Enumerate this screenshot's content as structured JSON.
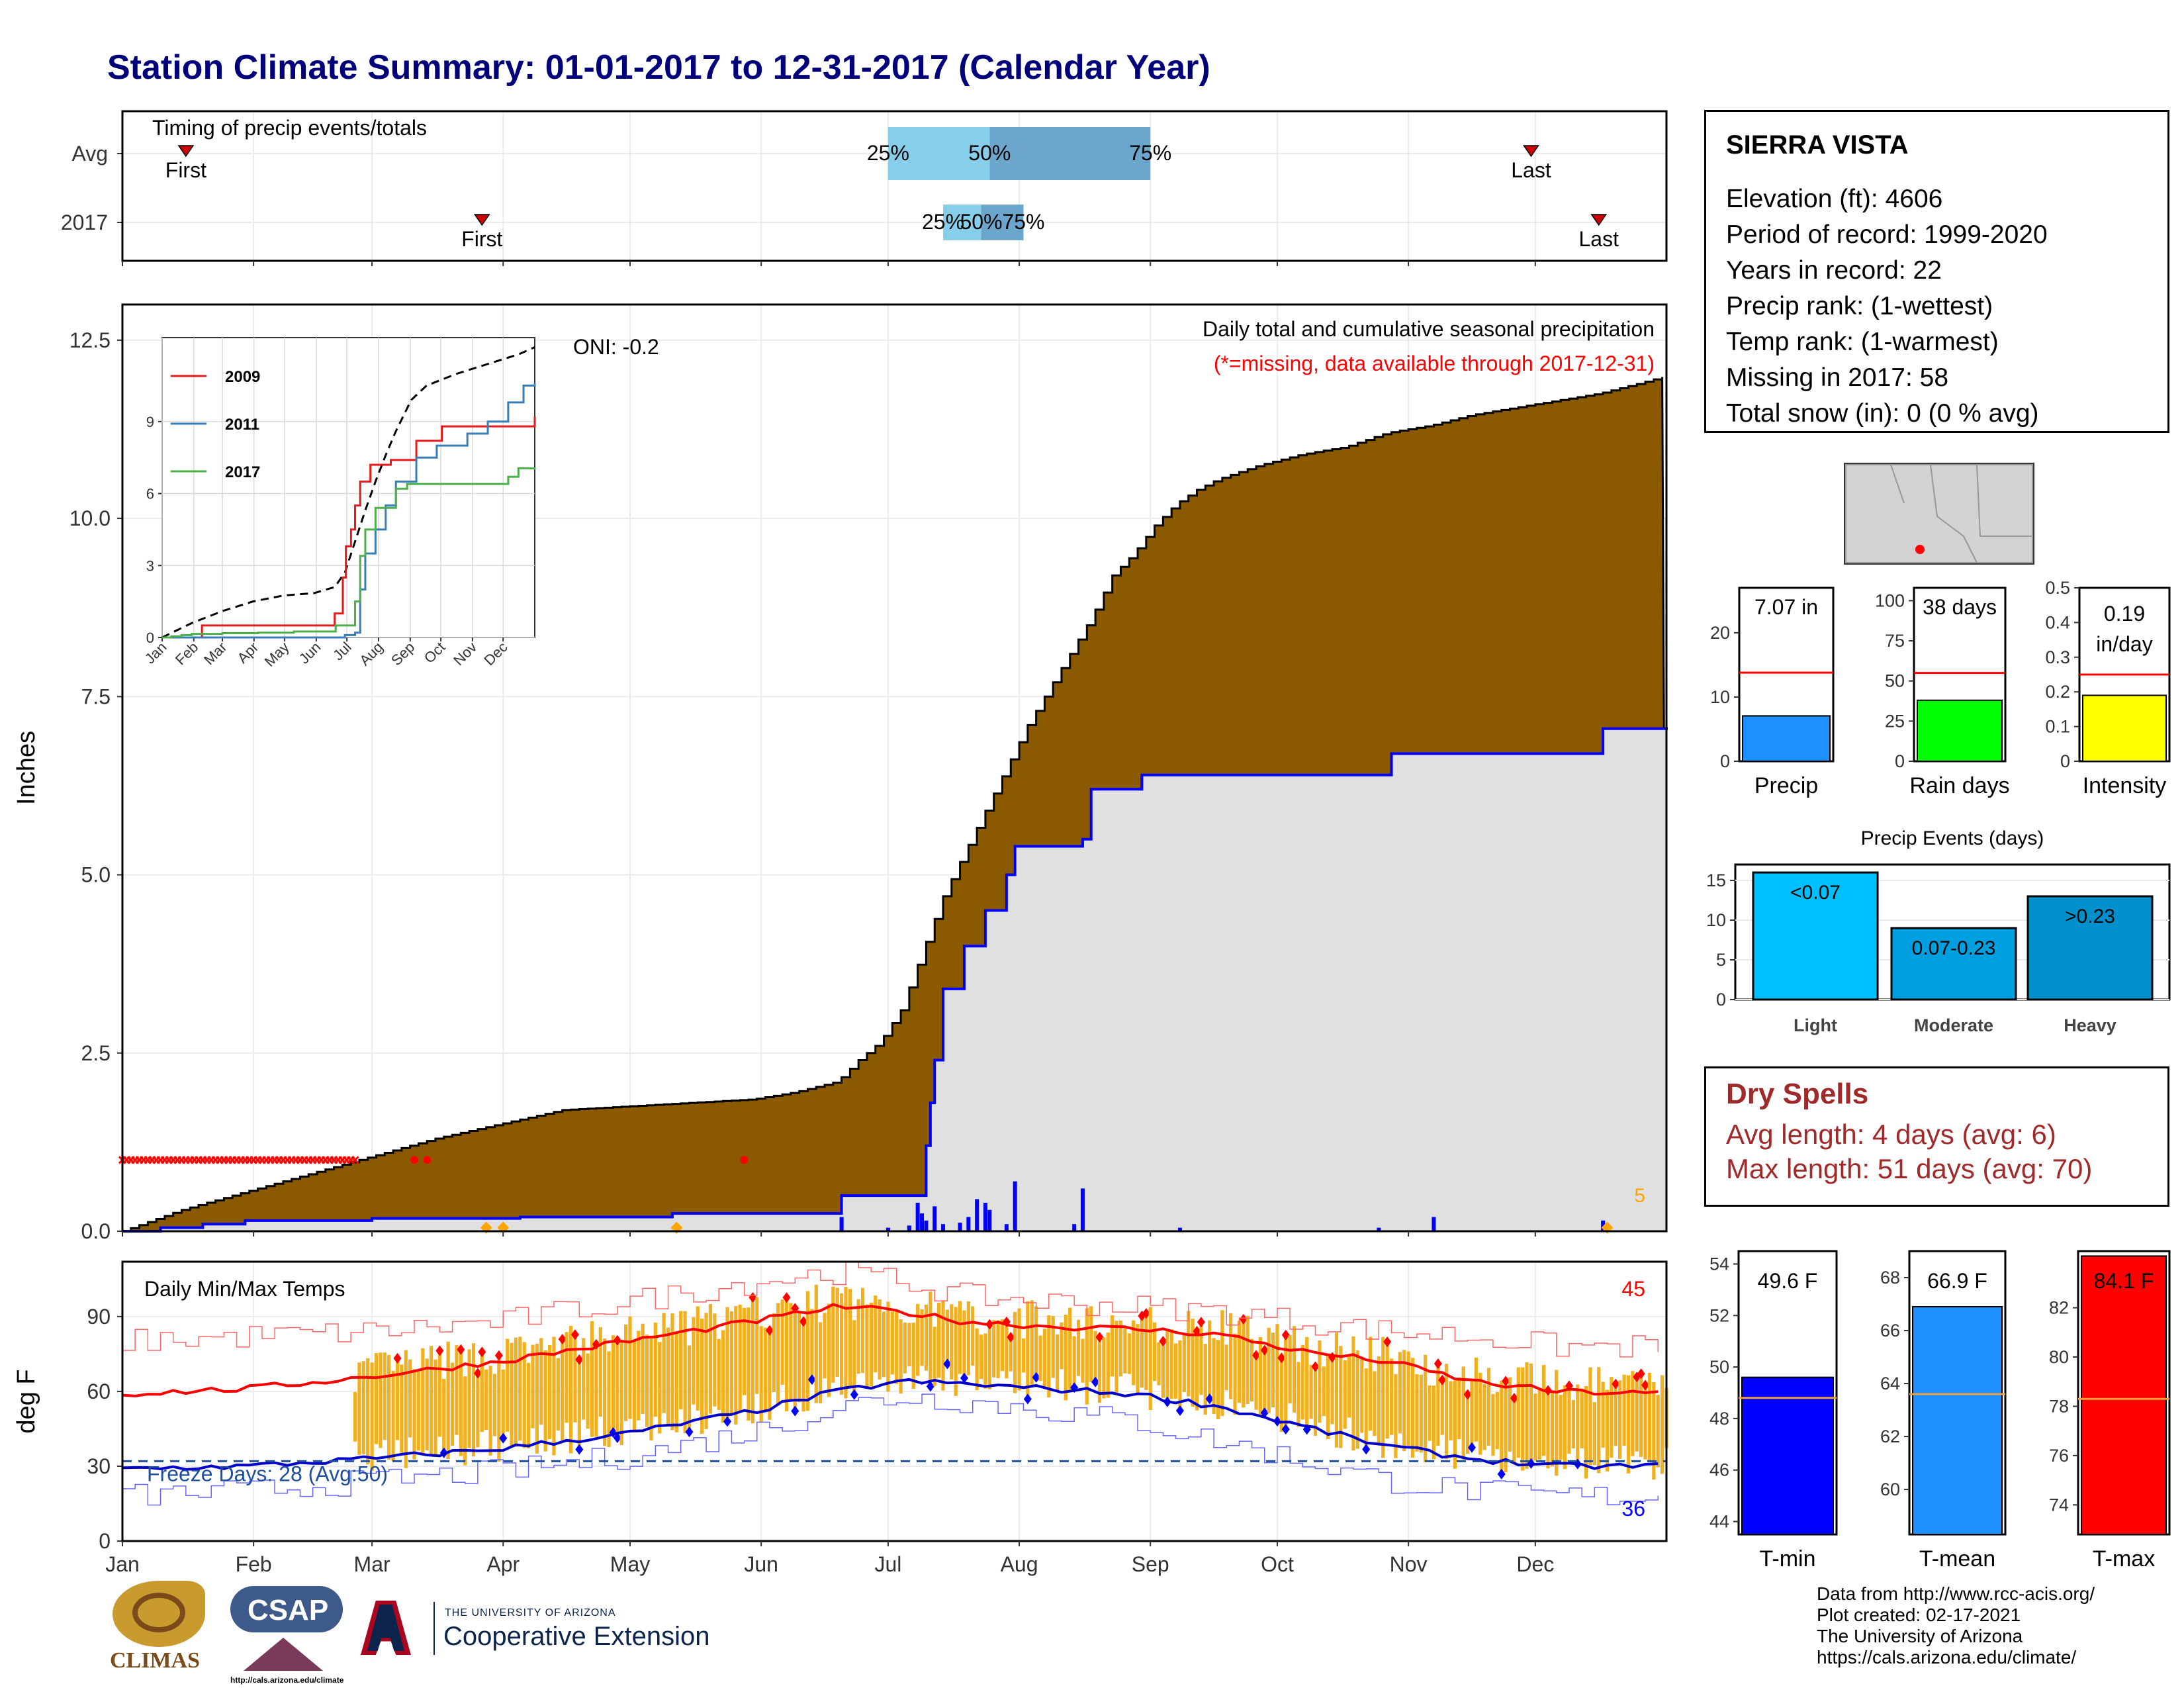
{
  "title": "Station Climate Summary: 01-01-2017 to 12-31-2017 (Calendar Year)",
  "station": {
    "name": "SIERRA VISTA",
    "lines": [
      "Elevation (ft): 4606",
      "Period of record: 1999-2020",
      "Years in record: 22",
      "Precip rank:  (1-wettest)",
      "Temp rank:  (1-warmest)",
      "Missing in 2017: 58",
      "Total snow (in): 0 (0 % avg)"
    ]
  },
  "dry_spells": {
    "title": "Dry Spells",
    "avg_length": "Avg length: 4 days (avg: 6)",
    "max_length": "Max length: 51 days (avg: 70)"
  },
  "credits": [
    "Data from http://www.rcc-acis.org/",
    "Plot created: 02-17-2021",
    "The University of Arizona",
    "https://cals.arizona.edu/climate/"
  ],
  "logos": {
    "climas": "CLIMAS",
    "csap": "CSAP",
    "csap_url": "http://cals.arizona.edu/climate",
    "ua_small": "THE UNIVERSITY OF ARIZONA",
    "ua_big": "Cooperative Extension"
  },
  "colors": {
    "cumulative_fill": "#8b5a00",
    "avg_fill": "#e0e0e0",
    "year_line": "#0000ff",
    "temp_bar": "#f0b020",
    "tmax_line": "#ff0000",
    "tmin_line": "#0000cc",
    "title": "#00007a",
    "dry_spells": "#a02a2a"
  },
  "chart_data": [
    {
      "id": "timing",
      "type": "bar",
      "title": "Timing of precip events/totals",
      "rows": [
        {
          "label": "Avg",
          "first_day": 16,
          "last_day": 334,
          "p25": 182,
          "p50": 206,
          "p75": 244,
          "first_label": "First",
          "last_label": "Last"
        },
        {
          "label": "2017",
          "first_day": 86,
          "last_day": 350,
          "p25": 195,
          "p50": 204,
          "p75": 214,
          "first_label": "First",
          "last_label": "Last"
        }
      ],
      "percentile_labels": [
        "25%",
        "50%",
        "75%"
      ]
    },
    {
      "id": "precip-main",
      "type": "area",
      "title": "Daily total and cumulative seasonal precipitation",
      "subtitle": "(*=missing, data available through 2017-12-31)",
      "annotation": "ONI: -0.2",
      "ylabel": "Inches",
      "yticks": [
        0.0,
        2.5,
        5.0,
        7.5,
        10.0,
        12.5
      ],
      "ylim": [
        0,
        13
      ],
      "xlim": [
        1,
        366
      ],
      "avg_cumulative": {
        "x": [
          1,
          15,
          30,
          45,
          60,
          75,
          90,
          105,
          120,
          135,
          150,
          160,
          170,
          175,
          180,
          185,
          190,
          195,
          200,
          205,
          210,
          215,
          220,
          225,
          230,
          235,
          240,
          245,
          250,
          255,
          260,
          270,
          280,
          290,
          300,
          310,
          320,
          330,
          340,
          350,
          360,
          366
        ],
        "y": [
          0,
          0.3,
          0.55,
          0.8,
          1.05,
          1.3,
          1.5,
          1.7,
          1.75,
          1.8,
          1.85,
          1.95,
          2.1,
          2.4,
          2.65,
          3.1,
          3.9,
          4.7,
          5.3,
          5.9,
          6.5,
          7.1,
          7.6,
          8.1,
          8.6,
          9.2,
          9.5,
          9.9,
          10.2,
          10.4,
          10.55,
          10.75,
          10.9,
          11.0,
          11.2,
          11.3,
          11.45,
          11.55,
          11.65,
          11.75,
          11.9,
          12.0
        ]
      },
      "year_cumulative": {
        "x": [
          1,
          10,
          20,
          30,
          60,
          90,
          95,
          110,
          129,
          131,
          170,
          171,
          190,
          191,
          192,
          193,
          195,
          200,
          205,
          210,
          212,
          215,
          228,
          230,
          241,
          242,
          300,
          301,
          340,
          350,
          351,
          366
        ],
        "y": [
          0,
          0.05,
          0.1,
          0.15,
          0.18,
          0.18,
          0.2,
          0.2,
          0.2,
          0.25,
          0.25,
          0.5,
          0.5,
          1.2,
          1.8,
          2.4,
          3.4,
          4.0,
          4.5,
          5.0,
          5.4,
          5.4,
          5.5,
          6.2,
          6.2,
          6.4,
          6.4,
          6.7,
          6.7,
          6.7,
          7.05,
          7.07
        ]
      },
      "daily_bars": {
        "x": [
          171,
          182,
          187,
          189,
          190,
          191,
          193,
          195,
          199,
          201,
          203,
          205,
          206,
          210,
          212,
          226,
          228,
          251,
          298,
          311,
          351
        ],
        "y": [
          0.2,
          0.05,
          0.08,
          0.4,
          0.25,
          0.15,
          0.35,
          0.1,
          0.12,
          0.2,
          0.45,
          0.4,
          0.3,
          0.1,
          0.7,
          0.1,
          0.6,
          0.05,
          0.05,
          0.2,
          0.15
        ]
      },
      "missing_days": {
        "x_start": 1,
        "x_end": 56,
        "y": 1.0,
        "extra": [
          70,
          73,
          148
        ]
      },
      "snow_marks": {
        "x": [
          87,
          91,
          132,
          352
        ],
        "label": "5"
      }
    },
    {
      "id": "precip-inset",
      "type": "line",
      "categories": [
        "Jan",
        "Feb",
        "Mar",
        "Apr",
        "May",
        "Jun",
        "Jul",
        "Aug",
        "Sep",
        "Oct",
        "Nov",
        "Dec"
      ],
      "yticks": [
        0,
        3,
        6,
        9
      ],
      "ylim": [
        0,
        12.5
      ],
      "series": [
        {
          "name": "2009",
          "color": "#e41a1c",
          "x": [
            1,
            40,
            90,
            150,
            170,
            178,
            181,
            186,
            190,
            195,
            205,
            225,
            250,
            275,
            300,
            330,
            366
          ],
          "y": [
            0,
            0.5,
            0.5,
            0.5,
            1.0,
            2.5,
            3.8,
            4.5,
            5.5,
            6.5,
            7.2,
            7.4,
            8.2,
            8.8,
            8.8,
            8.8,
            9.2
          ]
        },
        {
          "name": "2011",
          "color": "#377eb8",
          "x": [
            1,
            150,
            180,
            190,
            195,
            200,
            210,
            220,
            230,
            250,
            270,
            300,
            320,
            340,
            355,
            366
          ],
          "y": [
            0,
            0,
            0.1,
            0.2,
            2.0,
            3.5,
            4.5,
            5.5,
            6.5,
            7.5,
            8.0,
            8.5,
            9.0,
            9.8,
            10.5,
            10.6
          ]
        },
        {
          "name": "2017",
          "color": "#4daf4a",
          "x": [
            1,
            10,
            20,
            30,
            60,
            90,
            95,
            130,
            170,
            171,
            190,
            195,
            200,
            210,
            230,
            241,
            300,
            340,
            350,
            366
          ],
          "y": [
            0,
            0.05,
            0.1,
            0.15,
            0.18,
            0.18,
            0.2,
            0.25,
            0.25,
            0.5,
            1.5,
            3.4,
            4.5,
            5.4,
            6.2,
            6.4,
            6.4,
            6.7,
            7.05,
            7.07
          ]
        }
      ],
      "avg_series": {
        "x": [
          1,
          30,
          60,
          90,
          120,
          150,
          170,
          180,
          190,
          200,
          210,
          220,
          230,
          245,
          260,
          290,
          320,
          350,
          366
        ],
        "y": [
          0,
          0.6,
          1.1,
          1.5,
          1.75,
          1.85,
          2.1,
          2.7,
          4.0,
          5.3,
          6.5,
          7.6,
          8.6,
          9.9,
          10.5,
          11.0,
          11.4,
          11.8,
          12.1
        ]
      }
    },
    {
      "id": "temps-main",
      "type": "line",
      "title": "Daily Min/Max Temps",
      "ylabel": "deg F",
      "yticks": [
        0,
        30,
        60,
        90
      ],
      "ylim": [
        0,
        112
      ],
      "x_months": [
        "Jan",
        "Feb",
        "Mar",
        "Apr",
        "May",
        "Jun",
        "Jul",
        "Aug",
        "Sep",
        "Oct",
        "Nov",
        "Dec"
      ],
      "freeze_line": 32,
      "freeze_label": "Freeze Days: 28 (Avg:50)",
      "hot_days_count": "45",
      "cold_days_count": "36",
      "avg_max": {
        "x": [
          1,
          30,
          60,
          90,
          120,
          150,
          170,
          185,
          200,
          220,
          240,
          260,
          280,
          300,
          320,
          340,
          366
        ],
        "y": [
          59,
          61,
          66,
          72,
          80,
          88,
          94,
          92,
          88,
          86,
          85,
          83,
          76,
          72,
          64,
          60,
          59
        ]
      },
      "avg_min": {
        "x": [
          1,
          30,
          60,
          90,
          120,
          150,
          170,
          185,
          200,
          220,
          240,
          260,
          280,
          300,
          320,
          340,
          366
        ],
        "y": [
          29,
          30,
          33,
          37,
          43,
          52,
          60,
          64,
          63,
          61,
          59,
          54,
          46,
          38,
          33,
          30,
          30
        ]
      },
      "record_max": {
        "x": [
          1,
          30,
          60,
          90,
          120,
          150,
          170,
          185,
          200,
          220,
          240,
          260,
          280,
          300,
          320,
          340,
          366
        ],
        "y": [
          80,
          82,
          84,
          88,
          96,
          104,
          108,
          104,
          98,
          96,
          94,
          92,
          88,
          84,
          82,
          78,
          78
        ]
      },
      "record_min": {
        "x": [
          1,
          30,
          60,
          90,
          120,
          150,
          170,
          185,
          200,
          220,
          240,
          260,
          280,
          300,
          320,
          340,
          366
        ],
        "y": [
          18,
          20,
          24,
          28,
          34,
          44,
          54,
          58,
          56,
          52,
          48,
          40,
          32,
          24,
          20,
          18,
          18
        ]
      }
    },
    {
      "id": "precip-bars",
      "type": "bar",
      "panels": [
        {
          "label": "Precip",
          "value": 7.07,
          "display": "7.07 in",
          "avg": 13.8,
          "ylim": [
            0,
            27
          ],
          "yticks": [
            0,
            10,
            20
          ],
          "color": "#1e90ff"
        },
        {
          "label": "Rain days",
          "value": 38,
          "display": "38 days",
          "avg": 55,
          "ylim": [
            0,
            108
          ],
          "yticks": [
            0,
            25,
            50,
            75,
            100
          ],
          "color": "#00ff00"
        },
        {
          "label": "Intensity",
          "value": 0.19,
          "display": "0.19 in/day",
          "avg": 0.25,
          "ylim": [
            0,
            0.5
          ],
          "yticks": [
            0.0,
            0.1,
            0.2,
            0.3,
            0.4,
            0.5
          ],
          "color": "#ffff00"
        }
      ]
    },
    {
      "id": "precip-events",
      "type": "bar",
      "title": "Precip Events (days)",
      "categories": [
        "Light",
        "Moderate",
        "Heavy"
      ],
      "bar_labels": [
        "<0.07",
        "0.07-0.23",
        ">0.23"
      ],
      "values": [
        16,
        9,
        13
      ],
      "yticks": [
        0,
        5,
        10,
        15
      ],
      "ylim": [
        0,
        17
      ],
      "colors": [
        "#00bfff",
        "#00a0e0",
        "#0090cc"
      ]
    },
    {
      "id": "temp-bars",
      "type": "bar",
      "panels": [
        {
          "label": "T-min",
          "value": 49.6,
          "display": "49.6 F",
          "avg": 48.8,
          "ylim": [
            43.5,
            54.5
          ],
          "yticks": [
            44,
            46,
            48,
            50,
            52,
            54
          ],
          "color": "#0000ff"
        },
        {
          "label": "T-mean",
          "value": 66.9,
          "display": "66.9 F",
          "avg": 63.6,
          "ylim": [
            58.3,
            69.0
          ],
          "yticks": [
            60,
            62,
            64,
            66,
            68
          ],
          "color": "#1e90ff"
        },
        {
          "label": "T-max",
          "value": 84.1,
          "display": "84.1 F",
          "avg": 78.3,
          "ylim": [
            72.8,
            84.3
          ],
          "yticks": [
            74,
            76,
            78,
            80,
            82
          ],
          "color": "#ff0000"
        }
      ]
    },
    {
      "id": "locator-map",
      "type": "scatter",
      "point": {
        "label": "Sierra Vista"
      }
    }
  ]
}
